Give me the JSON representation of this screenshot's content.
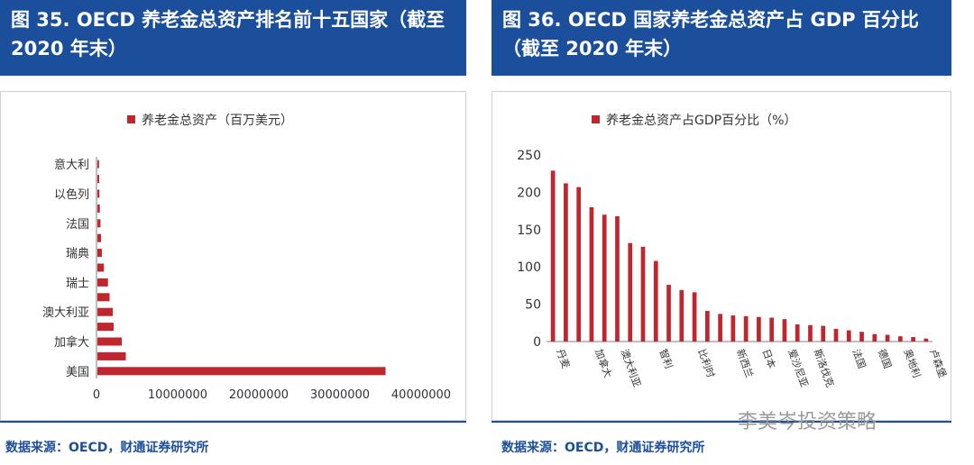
{
  "colors": {
    "header_bg": "#1b4f9c",
    "bar": "#c0262d",
    "axis": "#7f7f7f",
    "text": "#333333",
    "source": "#1b4f9c"
  },
  "left_panel": {
    "title": "图 35. OECD 养老金总资产排名前十五国家（截至 2020 年末）",
    "source": "数据来源：OECD，财通证券研究所"
  },
  "right_panel": {
    "title": "图 36. OECD 国家养老金总资产占 GDP 百分比（截至 2020 年末）",
    "source": "数据来源：OECD，财通证券研究所"
  },
  "watermark": "李美岑投资策略",
  "chart_data": [
    {
      "type": "bar",
      "orientation": "horizontal",
      "legend": "养老金总资产（百万美元）",
      "legend_position": "top-center",
      "categories": [
        "美国",
        "",
        "加拿大",
        "",
        "澳大利亚",
        "",
        "瑞士",
        "",
        "瑞典",
        "",
        "法国",
        "",
        "以色列",
        "",
        "意大利"
      ],
      "values": [
        35500000,
        3500000,
        3000000,
        2000000,
        1900000,
        1500000,
        1300000,
        800000,
        550000,
        450000,
        380000,
        300000,
        250000,
        220000,
        200000
      ],
      "xlim": [
        0,
        40000000
      ],
      "xticks": [
        "0",
        "10000000",
        "20000000",
        "30000000",
        "40000000"
      ]
    },
    {
      "type": "bar",
      "orientation": "vertical",
      "legend": "养老金总资产占GDP百分比（%）",
      "legend_position": "top-center",
      "categories": [
        "丹麦",
        "",
        "",
        "加拿大",
        "",
        "澳大利亚",
        "",
        "",
        "智利",
        "",
        "",
        "比利时",
        "",
        "",
        "新西兰",
        "",
        "日本",
        "",
        "爱沙尼亚",
        "",
        "斯洛伐克",
        "",
        "",
        "法国",
        "",
        "德国",
        "",
        "奥地利",
        "",
        "卢森堡"
      ],
      "values": [
        229,
        212,
        207,
        180,
        170,
        168,
        132,
        127,
        108,
        76,
        69,
        66,
        41,
        37,
        35,
        34,
        33,
        32,
        30,
        23,
        22,
        21,
        17,
        15,
        13,
        10,
        9,
        7,
        6,
        4
      ],
      "ylim": [
        0,
        250
      ],
      "yticks": [
        "0",
        "50",
        "100",
        "150",
        "200",
        "250"
      ]
    }
  ]
}
